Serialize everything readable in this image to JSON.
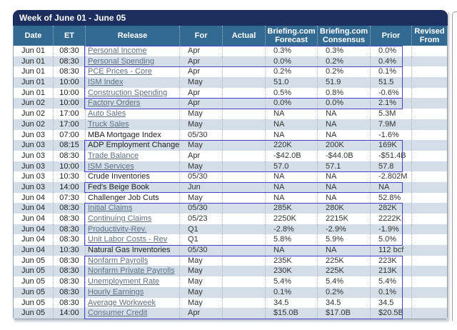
{
  "title": "Week of June 01 - June 05",
  "columns": [
    "Date",
    "ET",
    "Release",
    "For",
    "Actual",
    "Briefing.com Forecast",
    "Briefing.com Consensus",
    "Prior",
    "Revised From"
  ],
  "colors": {
    "title_bar": "#1c2e5e",
    "header_bg": "#336a91",
    "row_alt": "#d4dee8",
    "highlight_border": "#4343cd",
    "link": "#5c7082"
  },
  "rows": [
    {
      "date": "Jun 01",
      "et": "08:30",
      "release": "Personal Income",
      "is_link": true,
      "for": "Apr",
      "actual": "",
      "forecast": "0.3%",
      "consensus": "0.3%",
      "prior": "0.0%",
      "revised": ""
    },
    {
      "date": "Jun 01",
      "et": "08:30",
      "release": "Personal Spending",
      "is_link": true,
      "for": "Apr",
      "actual": "",
      "forecast": "0.0%",
      "consensus": "0.2%",
      "prior": "0.4%",
      "revised": ""
    },
    {
      "date": "Jun 01",
      "et": "08:30",
      "release": "PCE Prices - Core",
      "is_link": true,
      "for": "Apr",
      "actual": "",
      "forecast": "0.2%",
      "consensus": "0.2%",
      "prior": "0.1%",
      "revised": ""
    },
    {
      "date": "Jun 01",
      "et": "10:00",
      "release": "ISM Index",
      "is_link": true,
      "for": "May",
      "actual": "",
      "forecast": "51.0",
      "consensus": "51.9",
      "prior": "51.5",
      "revised": ""
    },
    {
      "date": "Jun 01",
      "et": "10:00",
      "release": "Construction Spending",
      "is_link": true,
      "for": "Apr",
      "actual": "",
      "forecast": "0.5%",
      "consensus": "0.8%",
      "prior": "-0.6%",
      "revised": ""
    },
    {
      "date": "Jun 02",
      "et": "10:00",
      "release": "Factory Orders",
      "is_link": true,
      "for": "Apr",
      "actual": "",
      "forecast": "0.0%",
      "consensus": "0.0%",
      "prior": "2.1%",
      "revised": ""
    },
    {
      "date": "Jun 02",
      "et": "17:00",
      "release": "Auto Sales",
      "is_link": true,
      "for": "May",
      "actual": "",
      "forecast": "NA",
      "consensus": "NA",
      "prior": "5.3M",
      "revised": ""
    },
    {
      "date": "Jun 02",
      "et": "17:00",
      "release": "Truck Sales",
      "is_link": true,
      "for": "May",
      "actual": "",
      "forecast": "NA",
      "consensus": "NA",
      "prior": "7.9M",
      "revised": ""
    },
    {
      "date": "Jun 03",
      "et": "07:00",
      "release": "MBA Mortgage Index",
      "is_link": false,
      "for": "05/30",
      "actual": "",
      "forecast": "NA",
      "consensus": "NA",
      "prior": "-1.6%",
      "revised": ""
    },
    {
      "date": "Jun 03",
      "et": "08:15",
      "release": "ADP Employment Change",
      "is_link": false,
      "for": "May",
      "actual": "",
      "forecast": "220K",
      "consensus": "200K",
      "prior": "169K",
      "revised": ""
    },
    {
      "date": "Jun 03",
      "et": "08:30",
      "release": "Trade Balance",
      "is_link": true,
      "for": "Apr",
      "actual": "",
      "forecast": "-$42.0B",
      "consensus": "-$44.0B",
      "prior": "-$51.4B",
      "revised": ""
    },
    {
      "date": "Jun 03",
      "et": "10:00",
      "release": "ISM Services",
      "is_link": true,
      "for": "May",
      "actual": "",
      "forecast": "57.0",
      "consensus": "57.1",
      "prior": "57.8",
      "revised": ""
    },
    {
      "date": "Jun 03",
      "et": "10:30",
      "release": "Crude Inventories",
      "is_link": false,
      "for": "05/30",
      "actual": "",
      "forecast": "NA",
      "consensus": "NA",
      "prior": "-2.802M",
      "revised": ""
    },
    {
      "date": "Jun 03",
      "et": "14:00",
      "release": "Fed's Beige Book",
      "is_link": false,
      "for": "Jun",
      "actual": "",
      "forecast": "NA",
      "consensus": "NA",
      "prior": "NA",
      "revised": ""
    },
    {
      "date": "Jun 04",
      "et": "07:30",
      "release": "Challenger Job Cuts",
      "is_link": false,
      "for": "May",
      "actual": "",
      "forecast": "NA",
      "consensus": "NA",
      "prior": "52.8%",
      "revised": ""
    },
    {
      "date": "Jun 04",
      "et": "08:30",
      "release": "Initial Claims",
      "is_link": true,
      "for": "05/30",
      "actual": "",
      "forecast": "285K",
      "consensus": "280K",
      "prior": "282K",
      "revised": ""
    },
    {
      "date": "Jun 04",
      "et": "08:30",
      "release": "Continuing Claims",
      "is_link": true,
      "for": "05/23",
      "actual": "",
      "forecast": "2250K",
      "consensus": "2215K",
      "prior": "2222K",
      "revised": ""
    },
    {
      "date": "Jun 04",
      "et": "08:30",
      "release": "Productivity-Rev.",
      "is_link": true,
      "for": "Q1",
      "actual": "",
      "forecast": "-2.8%",
      "consensus": "-2.9%",
      "prior": "-1.9%",
      "revised": ""
    },
    {
      "date": "Jun 04",
      "et": "08:30",
      "release": "Unit Labor Costs - Rev",
      "is_link": true,
      "for": "Q1",
      "actual": "",
      "forecast": "5.8%",
      "consensus": "5.9%",
      "prior": "5.0%",
      "revised": ""
    },
    {
      "date": "Jun 04",
      "et": "10:30",
      "release": "Natural Gas Inventories",
      "is_link": false,
      "for": "05/30",
      "actual": "",
      "forecast": "NA",
      "consensus": "NA",
      "prior": "112 bcf",
      "revised": ""
    },
    {
      "date": "Jun 05",
      "et": "08:30",
      "release": "Nonfarm Payrolls",
      "is_link": true,
      "for": "May",
      "actual": "",
      "forecast": "235K",
      "consensus": "225K",
      "prior": "223K",
      "revised": ""
    },
    {
      "date": "Jun 05",
      "et": "08:30",
      "release": "Nonfarm Private Payrolls",
      "is_link": true,
      "for": "May",
      "actual": "",
      "forecast": "230K",
      "consensus": "225K",
      "prior": "213K",
      "revised": ""
    },
    {
      "date": "Jun 05",
      "et": "08:30",
      "release": "Unemployment Rate",
      "is_link": true,
      "for": "May",
      "actual": "",
      "forecast": "5.4%",
      "consensus": "5.4%",
      "prior": "5.4%",
      "revised": ""
    },
    {
      "date": "Jun 05",
      "et": "08:30",
      "release": "Hourly Earnings",
      "is_link": true,
      "for": "May",
      "actual": "",
      "forecast": "0.1%",
      "consensus": "0.2%",
      "prior": "0.1%",
      "revised": ""
    },
    {
      "date": "Jun 05",
      "et": "08:30",
      "release": "Average Workweek",
      "is_link": true,
      "for": "May",
      "actual": "",
      "forecast": "34.5",
      "consensus": "34.5",
      "prior": "34.5",
      "revised": ""
    },
    {
      "date": "Jun 05",
      "et": "14:00",
      "release": "Consumer Credit",
      "is_link": true,
      "for": "Apr",
      "actual": "",
      "forecast": "$15.0B",
      "consensus": "$17.0B",
      "prior": "$20.5B",
      "revised": ""
    }
  ],
  "highlight_groups": [
    {
      "rows": [
        1,
        2
      ]
    },
    {
      "rows": [
        3,
        5
      ]
    },
    {
      "rows": [
        6,
        6
      ]
    },
    {
      "rows": [
        10,
        12
      ]
    },
    {
      "rows": [
        14,
        14
      ]
    },
    {
      "rows": [
        16,
        19
      ]
    },
    {
      "rows": [
        21,
        26
      ]
    }
  ]
}
